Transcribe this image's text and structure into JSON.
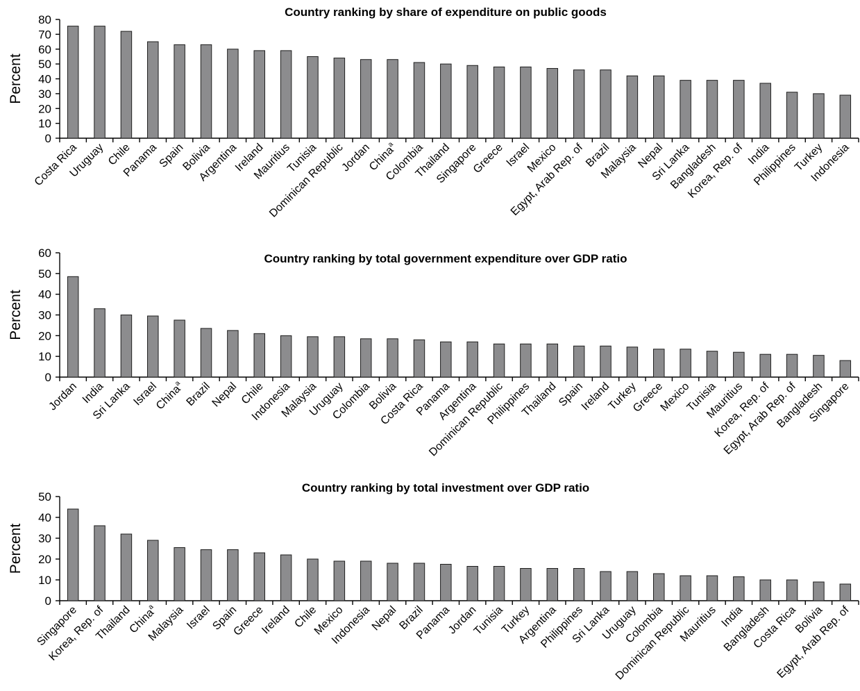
{
  "chart_data": [
    {
      "type": "bar",
      "title": "Country ranking by share of expenditure on public goods",
      "ylabel": "Percent",
      "ylim": [
        0,
        80
      ],
      "yticks": [
        0,
        10,
        20,
        30,
        40,
        50,
        60,
        70,
        80
      ],
      "categories": [
        "Costa Rica",
        "Uruguay",
        "Chile",
        "Panama",
        "Spain",
        "Bolivia",
        "Argentina",
        "Ireland",
        "Mauritius",
        "Tunisia",
        "Dominican Republic",
        "Jordan",
        "China",
        "Colombia",
        "Thailand",
        "Singapore",
        "Greece",
        "Israel",
        "Mexico",
        "Egypt, Arab Rep. of",
        "Brazil",
        "Malaysia",
        "Nepal",
        "Sri Lanka",
        "Bangladesh",
        "Korea, Rep. of",
        "India",
        "Philippines",
        "Turkey",
        "Indonesia"
      ],
      "superscripts": {
        "China": "a"
      },
      "values": [
        75.5,
        75.5,
        72,
        65,
        63,
        63,
        60,
        59,
        59,
        55,
        54,
        53,
        53,
        51,
        50,
        49,
        48,
        48,
        47,
        46,
        46,
        42,
        42,
        39,
        39,
        39,
        37,
        31,
        30,
        29
      ],
      "grid": false,
      "legend": "none"
    },
    {
      "type": "bar",
      "title": "Country ranking by total government expenditure over GDP ratio",
      "ylabel": "Percent",
      "ylim": [
        0,
        60
      ],
      "yticks": [
        0,
        10,
        20,
        30,
        40,
        50,
        60
      ],
      "categories": [
        "Jordan",
        "India",
        "Sri Lanka",
        "Israel",
        "China",
        "Brazil",
        "Nepal",
        "Chile",
        "Indonesia",
        "Malaysia",
        "Uruguay",
        "Colombia",
        "Bolivia",
        "Costa Rica",
        "Panama",
        "Argentina",
        "Dominican Republic",
        "Philippines",
        "Thailand",
        "Spain",
        "Ireland",
        "Turkey",
        "Greece",
        "Mexico",
        "Tunisia",
        "Mauritius",
        "Korea, Rep. of",
        "Egypt, Arab Rep. of",
        "Bangladesh",
        "Singapore"
      ],
      "superscripts": {
        "China": "a"
      },
      "values": [
        48.5,
        33,
        30,
        29.5,
        27.5,
        23.5,
        22.5,
        21,
        20,
        19.5,
        19.5,
        18.5,
        18.5,
        18,
        17,
        17,
        16,
        16,
        16,
        15,
        15,
        14.5,
        13.5,
        13.5,
        12.5,
        12,
        11,
        11,
        10.5,
        8
      ],
      "grid": false,
      "legend": "none"
    },
    {
      "type": "bar",
      "title": "Country ranking by total investment over GDP ratio",
      "ylabel": "Percent",
      "ylim": [
        0,
        50
      ],
      "yticks": [
        0,
        10,
        20,
        30,
        40,
        50
      ],
      "categories": [
        "Singapore",
        "Korea, Rep. of",
        "Thailand",
        "China",
        "Malaysia",
        "Israel",
        "Spain",
        "Greece",
        "Ireland",
        "Chile",
        "Mexico",
        "Indonesia",
        "Nepal",
        "Brazil",
        "Panama",
        "Jordan",
        "Tunisia",
        "Turkey",
        "Argentina",
        "Philippines",
        "Sri Lanka",
        "Uruguay",
        "Colombia",
        "Dominican Republic",
        "Mauritius",
        "India",
        "Bangladesh",
        "Costa Rica",
        "Bolivia",
        "Egypt, Arab Rep. of"
      ],
      "superscripts": {
        "China": "a"
      },
      "values": [
        44,
        36,
        32,
        29,
        25.5,
        24.5,
        24.5,
        23,
        22,
        20,
        19,
        19,
        18,
        18,
        17.5,
        16.5,
        16.5,
        15.5,
        15.5,
        15.5,
        14,
        14,
        13,
        12,
        12,
        11.5,
        10,
        10,
        9,
        8
      ],
      "grid": false,
      "legend": "none"
    }
  ]
}
